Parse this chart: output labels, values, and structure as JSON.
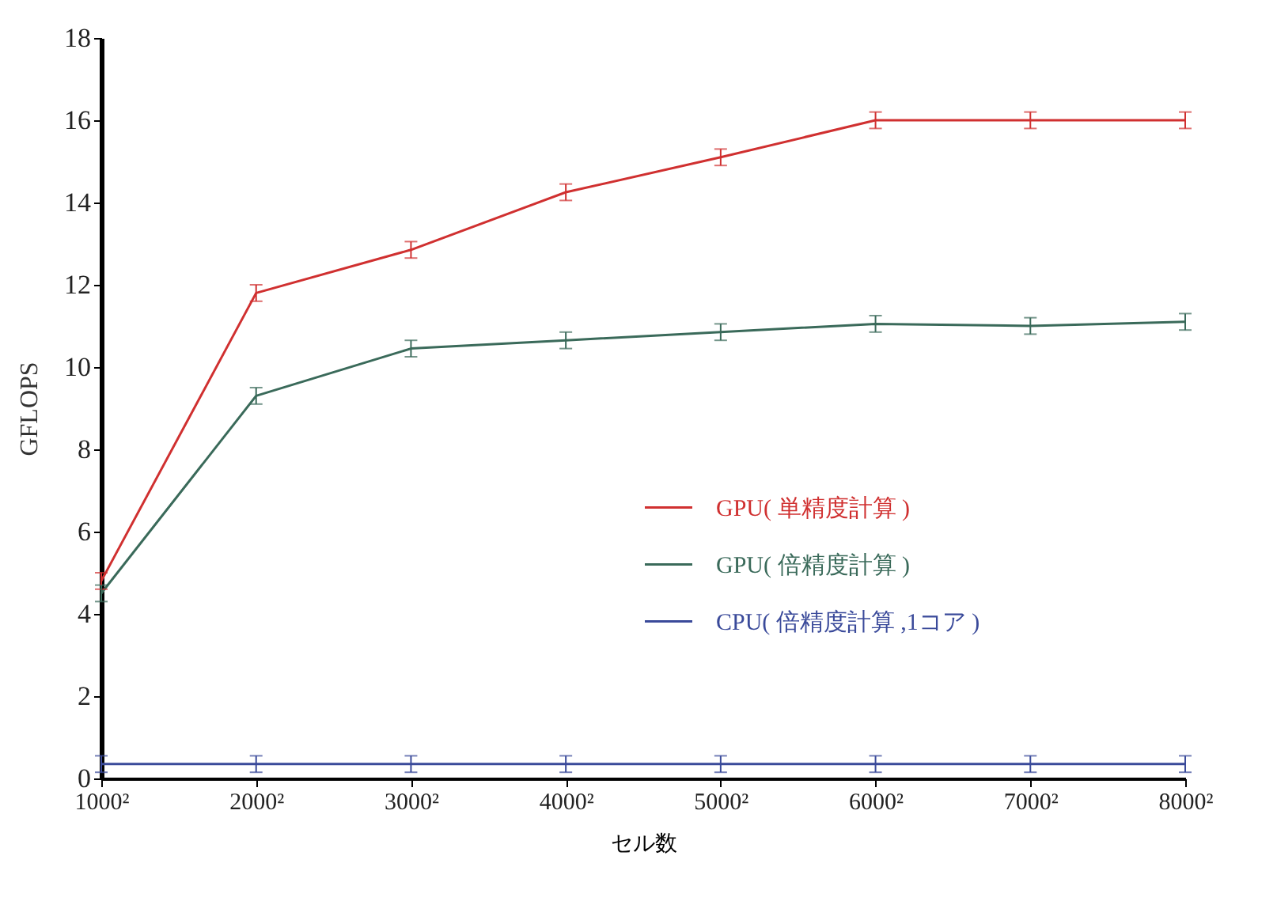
{
  "chart_data": {
    "type": "line",
    "xlabel": "セル数",
    "ylabel": "GFLOPS",
    "categories": [
      "1000²",
      "2000²",
      "3000²",
      "4000²",
      "5000²",
      "6000²",
      "7000²",
      "8000²"
    ],
    "series": [
      {
        "name": "GPU( 単精度計算 )",
        "color": "#d03030",
        "values": [
          4.8,
          11.8,
          12.85,
          14.25,
          15.1,
          16.0,
          16.0,
          16.0
        ],
        "errors": [
          0.2,
          0.2,
          0.2,
          0.2,
          0.2,
          0.2,
          0.2,
          0.2
        ]
      },
      {
        "name": "GPU( 倍精度計算 )",
        "color": "#3a6a5a",
        "values": [
          4.5,
          9.3,
          10.45,
          10.65,
          10.85,
          11.05,
          11.0,
          11.1
        ],
        "errors": [
          0.2,
          0.2,
          0.2,
          0.2,
          0.2,
          0.2,
          0.2,
          0.2
        ]
      },
      {
        "name": "CPU( 倍精度計算 ,1コア )",
        "color": "#3a4a9a",
        "values": [
          0.35,
          0.35,
          0.35,
          0.35,
          0.35,
          0.35,
          0.35,
          0.35
        ],
        "errors": [
          0.2,
          0.2,
          0.2,
          0.2,
          0.2,
          0.2,
          0.2,
          0.2
        ]
      }
    ],
    "ylim": [
      0,
      18
    ],
    "yticks": [
      0,
      2,
      4,
      6,
      8,
      10,
      12,
      14,
      16,
      18
    ],
    "grid": false,
    "legend": "right",
    "line_style": "solid"
  }
}
